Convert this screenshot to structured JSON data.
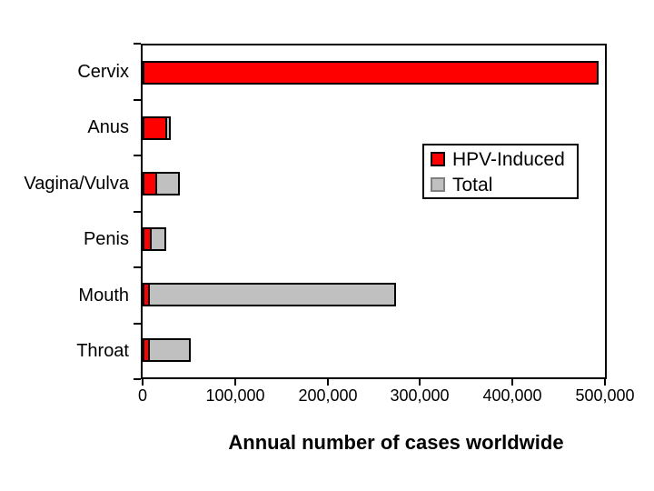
{
  "figure": {
    "background_color": "#FFFFFF",
    "axis_color": "#000000",
    "bar_outline_color": "#000000"
  },
  "legend": {
    "items": [
      {
        "label": "HPV-Induced",
        "color": "#FF0000"
      },
      {
        "label": "Total",
        "color": "#C0C0C0"
      }
    ]
  },
  "chart_data": {
    "type": "bar",
    "orientation": "horizontal",
    "title": "",
    "xlabel": "Annual number of cases worldwide",
    "ylabel": "",
    "categories": [
      "Cervix",
      "Anus",
      "Vagina/Vulva",
      "Penis",
      "Mouth",
      "Throat"
    ],
    "series": [
      {
        "name": "HPV-Induced",
        "color": "#FF0000",
        "values": [
          493000,
          27000,
          16000,
          10000,
          8000,
          8000
        ]
      },
      {
        "name": "Total",
        "color": "#C0C0C0",
        "values": [
          493000,
          30000,
          40000,
          26000,
          274000,
          52000
        ]
      }
    ],
    "xlim": [
      0,
      500000
    ],
    "x_ticks": [
      0,
      100000,
      200000,
      300000,
      400000,
      500000
    ],
    "x_tick_labels": [
      "0",
      "100,000",
      "200,000",
      "300,000",
      "400,000",
      "500,000"
    ],
    "legend_position": "upper-right",
    "grid": false
  }
}
